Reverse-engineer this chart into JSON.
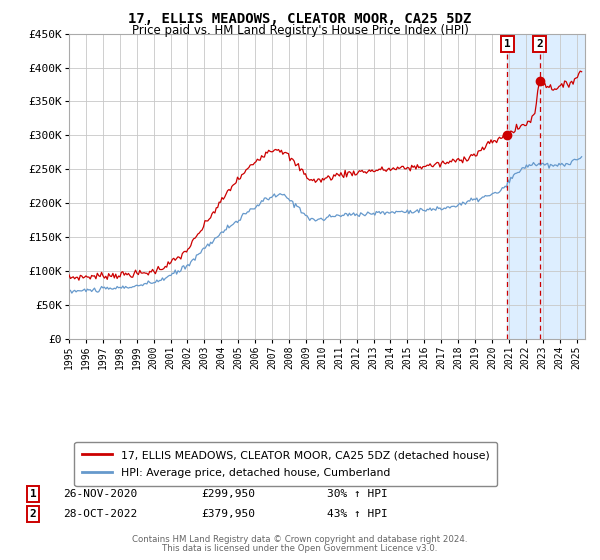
{
  "title": "17, ELLIS MEADOWS, CLEATOR MOOR, CA25 5DZ",
  "subtitle": "Price paid vs. HM Land Registry's House Price Index (HPI)",
  "legend_label_red": "17, ELLIS MEADOWS, CLEATOR MOOR, CA25 5DZ (detached house)",
  "legend_label_blue": "HPI: Average price, detached house, Cumberland",
  "annotation1_date": "26-NOV-2020",
  "annotation1_price": "£299,950",
  "annotation1_hpi": "30% ↑ HPI",
  "annotation2_date": "28-OCT-2022",
  "annotation2_price": "£379,950",
  "annotation2_hpi": "43% ↑ HPI",
  "footer_line1": "Contains HM Land Registry data © Crown copyright and database right 2024.",
  "footer_line2": "This data is licensed under the Open Government Licence v3.0.",
  "ylim": [
    0,
    450000
  ],
  "yticks": [
    0,
    50000,
    100000,
    150000,
    200000,
    250000,
    300000,
    350000,
    400000,
    450000
  ],
  "xmin": 1995.0,
  "xmax": 2025.5,
  "color_red": "#cc0000",
  "color_blue": "#6699cc",
  "color_bg_highlight": "#ddeeff",
  "sale1_x": 2020.91,
  "sale2_x": 2022.83,
  "sale1_y": 299950,
  "sale2_y": 379950,
  "vline1_x": 2020.91,
  "vline2_x": 2022.83
}
